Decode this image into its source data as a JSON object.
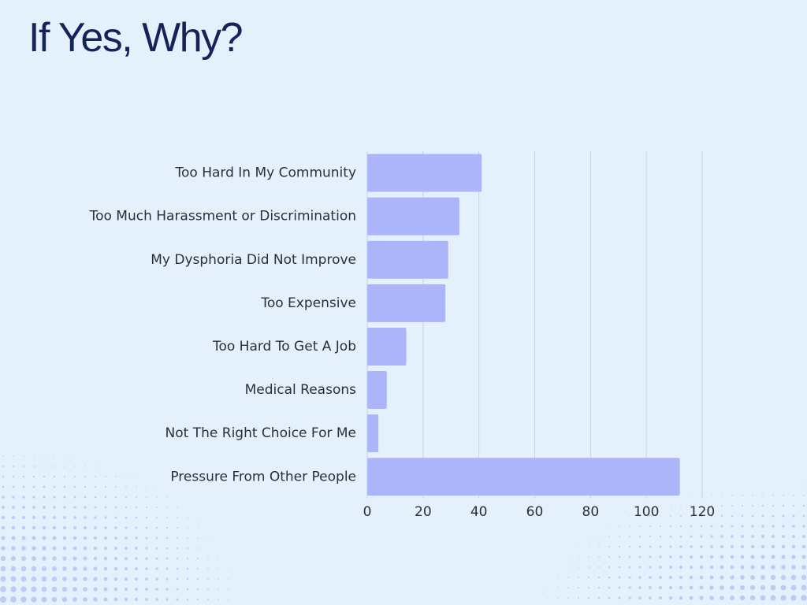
{
  "page": {
    "title": "If Yes, Why?"
  },
  "colors": {
    "background": "#e4f0fc",
    "bar": "#adb5fa",
    "grid": "#c7d2df",
    "title": "#16235a",
    "text": "#2b2f3a"
  },
  "chart_data": {
    "type": "bar",
    "orientation": "horizontal",
    "categories": [
      "Too Hard In My Community",
      "Too Much Harassment or Discrimination",
      "My Dysphoria Did Not Improve",
      "Too Expensive",
      "Too Hard To Get A Job",
      "Medical Reasons",
      "Not The Right Choice For Me",
      "Pressure From Other People"
    ],
    "values": [
      41,
      33,
      29,
      28,
      14,
      7,
      4,
      112
    ],
    "xlim": [
      0,
      120
    ],
    "xticks": [
      0,
      20,
      40,
      60,
      80,
      100,
      120
    ],
    "grid": "vertical",
    "legend": "none"
  }
}
